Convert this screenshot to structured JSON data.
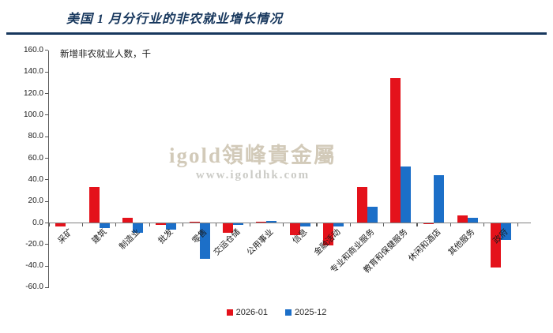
{
  "header": {
    "title": "美国 1 月分行业的非农就业增长情况"
  },
  "chart": {
    "axis_title": "新增非农就业人数，千",
    "watermark": {
      "brand": "igold領峰貴金屬",
      "url": "www.igoldhk.com"
    },
    "colors": {
      "series_2026_01": "#E4121B",
      "series_2025_12": "#1C6FC8",
      "title": "#17375D",
      "axis": "#808080"
    }
  },
  "chart_data": {
    "type": "bar",
    "title": "美国1月分行业的非农就业增长情况",
    "xlabel": "",
    "ylabel": "新增非农就业人数，千",
    "ylim": [
      -60,
      160
    ],
    "y_tick_step": 20,
    "grid": false,
    "legend_position": "bottom",
    "categories": [
      "采矿",
      "建筑",
      "制造业",
      "批发",
      "零售",
      "交运仓储",
      "公用事业",
      "信息",
      "金融活动",
      "专业和商业服务",
      "教育和保健服务",
      "休闲和酒店",
      "其他服务",
      "政府"
    ],
    "series": [
      {
        "name": "2026-01",
        "color": "#E4121B",
        "values": [
          -3,
          33,
          5,
          -2,
          1,
          -9,
          1,
          -11,
          -21,
          33,
          134,
          -1,
          7,
          -41
        ]
      },
      {
        "name": "2025-12",
        "color": "#1C6FC8",
        "values": [
          0,
          -5,
          -9,
          -6,
          -33,
          -2,
          2,
          -3,
          -3,
          15,
          52,
          44,
          5,
          -16
        ]
      }
    ]
  }
}
